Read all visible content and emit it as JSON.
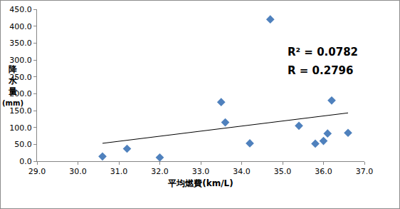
{
  "chart_data": {
    "type": "scatter",
    "x_label": "平均燃費(km/L)",
    "y_label": "降水量(mm)",
    "annotations": [
      "R² = 0.0782",
      "R = 0.2796"
    ],
    "series": [
      {
        "type": "scatter",
        "color": "#4f81bd",
        "marker": "diamond",
        "x": [
          30.6,
          31.2,
          32.0,
          33.5,
          33.6,
          34.2,
          34.7,
          35.4,
          35.8,
          36.0,
          36.1,
          36.2,
          36.6
        ],
        "values": [
          14,
          37,
          11,
          175,
          115,
          53,
          420,
          105,
          52,
          60,
          82,
          180,
          84
        ]
      },
      {
        "type": "line",
        "color": "#000000",
        "line_style": "solid",
        "x": [
          30.6,
          36.6
        ],
        "values": [
          53,
          143
        ]
      }
    ],
    "xlim": [
      29,
      37
    ],
    "xticks": [
      {
        "value": 29,
        "label": "29.0"
      },
      {
        "value": 30,
        "label": "30.0"
      },
      {
        "value": 31,
        "label": "31.0"
      },
      {
        "value": 32,
        "label": "32.0"
      },
      {
        "value": 33,
        "label": "33.0"
      },
      {
        "value": 34,
        "label": "34.0"
      },
      {
        "value": 35,
        "label": "35.0"
      },
      {
        "value": 36,
        "label": "36.0"
      },
      {
        "value": 37,
        "label": "37.0"
      }
    ],
    "ylim": [
      0,
      450
    ],
    "yticks": [
      {
        "value": 0,
        "label": "0.0"
      },
      {
        "value": 50,
        "label": "50.0"
      },
      {
        "value": 100,
        "label": "100.0"
      },
      {
        "value": 150,
        "label": "150.0"
      },
      {
        "value": 200,
        "label": "200.0"
      },
      {
        "value": 250,
        "label": "250.0"
      },
      {
        "value": 300,
        "label": "300.0"
      },
      {
        "value": 350,
        "label": "350.0"
      },
      {
        "value": 400,
        "label": "400.0"
      },
      {
        "value": 450,
        "label": "450.0"
      }
    ],
    "grid": false
  }
}
